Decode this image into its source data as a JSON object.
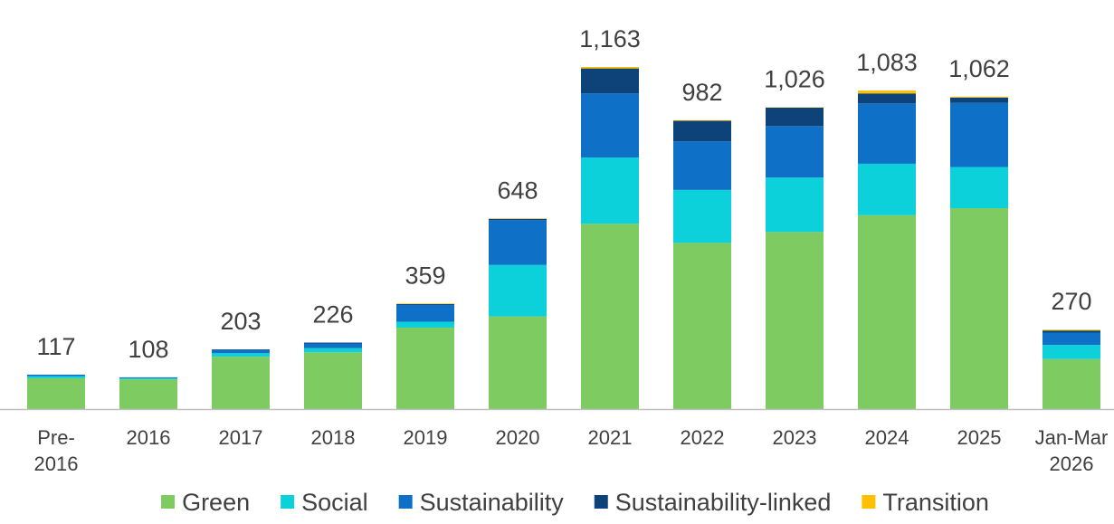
{
  "chart_data": {
    "type": "bar",
    "stacked": true,
    "categories": [
      [
        "Pre-",
        "2016"
      ],
      [
        "2016"
      ],
      [
        "2017"
      ],
      [
        "2018"
      ],
      [
        "2019"
      ],
      [
        "2020"
      ],
      [
        "2021"
      ],
      [
        "2022"
      ],
      [
        "2023"
      ],
      [
        "2024"
      ],
      [
        "2025"
      ],
      [
        "Jan-Mar",
        "2026"
      ]
    ],
    "totals": [
      117,
      108,
      203,
      226,
      359,
      648,
      1163,
      982,
      1026,
      1083,
      1062,
      270
    ],
    "total_labels": [
      "117",
      "108",
      "203",
      "226",
      "359",
      "648",
      "1,163",
      "982",
      "1,026",
      "1,083",
      "1,062",
      "270"
    ],
    "series": [
      {
        "name": "Green",
        "color": "#7ecb62",
        "values": [
          105,
          101,
          178,
          193,
          277,
          315,
          630,
          565,
          602,
          659,
          683,
          170
        ]
      },
      {
        "name": "Social",
        "color": "#0cd0da",
        "values": [
          7,
          4,
          12,
          14,
          20,
          175,
          225,
          180,
          185,
          175,
          140,
          48
        ]
      },
      {
        "name": "Sustainability",
        "color": "#0f70c8",
        "values": [
          5,
          3,
          11,
          16,
          57,
          152,
          218,
          165,
          175,
          205,
          218,
          42
        ]
      },
      {
        "name": "Sustainability-linked",
        "color": "#0e4379",
        "values": [
          0,
          0,
          2,
          3,
          3,
          5,
          85,
          70,
          63,
          34,
          18,
          7
        ]
      },
      {
        "name": "Transition",
        "color": "#ffc000",
        "values": [
          0,
          0,
          0,
          0,
          2,
          1,
          5,
          2,
          1,
          10,
          3,
          3
        ]
      }
    ],
    "ylim": [
      0,
      1200
    ],
    "grid": false,
    "legend_position": "bottom"
  }
}
